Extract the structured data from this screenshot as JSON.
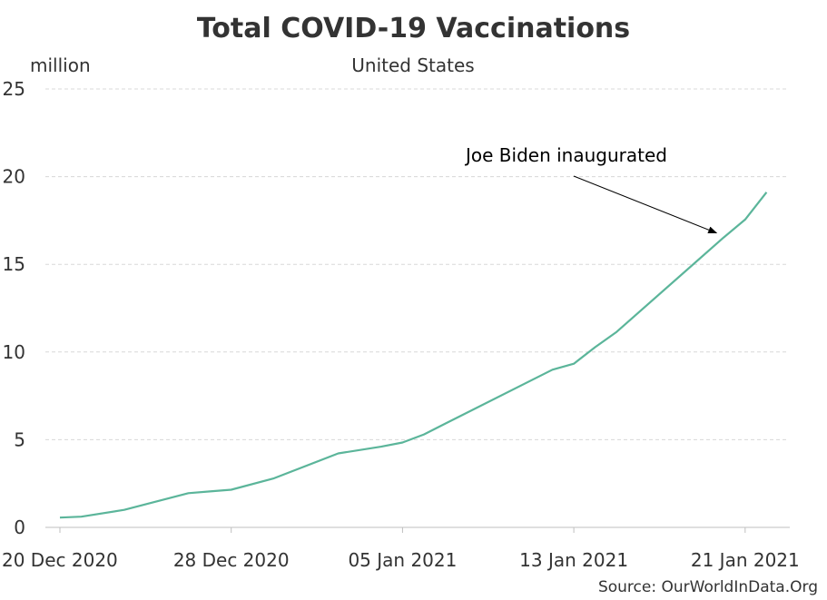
{
  "chart_data": {
    "type": "line",
    "title": "Total COVID-19 Vaccinations",
    "subtitle": "United States",
    "ylabel": "million",
    "source": "Source: OurWorldInData.Org",
    "ylim": [
      0,
      25
    ],
    "yticks": [
      0,
      5,
      10,
      15,
      20,
      25
    ],
    "xlim": [
      "2020-12-20",
      "2021-01-23"
    ],
    "xticks": [
      {
        "date": "2020-12-20",
        "label": "20 Dec 2020"
      },
      {
        "date": "2020-12-28",
        "label": "28 Dec 2020"
      },
      {
        "date": "2021-01-05",
        "label": "05 Jan 2021"
      },
      {
        "date": "2021-01-13",
        "label": "13 Jan 2021"
      },
      {
        "date": "2021-01-21",
        "label": "21 Jan 2021"
      }
    ],
    "grid": "horizontal",
    "line_color": "#5bb59a",
    "series": [
      {
        "x": [
          "2020-12-20",
          "2020-12-21",
          "2020-12-23",
          "2020-12-26",
          "2020-12-27",
          "2020-12-28",
          "2020-12-30",
          "2021-01-02",
          "2021-01-04",
          "2021-01-05",
          "2021-01-06",
          "2021-01-07",
          "2021-01-12",
          "2021-01-13",
          "2021-01-14",
          "2021-01-15",
          "2021-01-20",
          "2021-01-21",
          "2021-01-22"
        ],
        "values": [
          0.56,
          0.61,
          1.0,
          1.95,
          2.05,
          2.15,
          2.8,
          4.22,
          4.6,
          4.84,
          5.3,
          5.92,
          8.99,
          9.33,
          10.28,
          11.15,
          16.53,
          17.55,
          19.11
        ]
      }
    ],
    "annotations": [
      {
        "text": "Joe Biden inaugurated",
        "date": "2021-01-20",
        "value": 16.53
      }
    ]
  }
}
